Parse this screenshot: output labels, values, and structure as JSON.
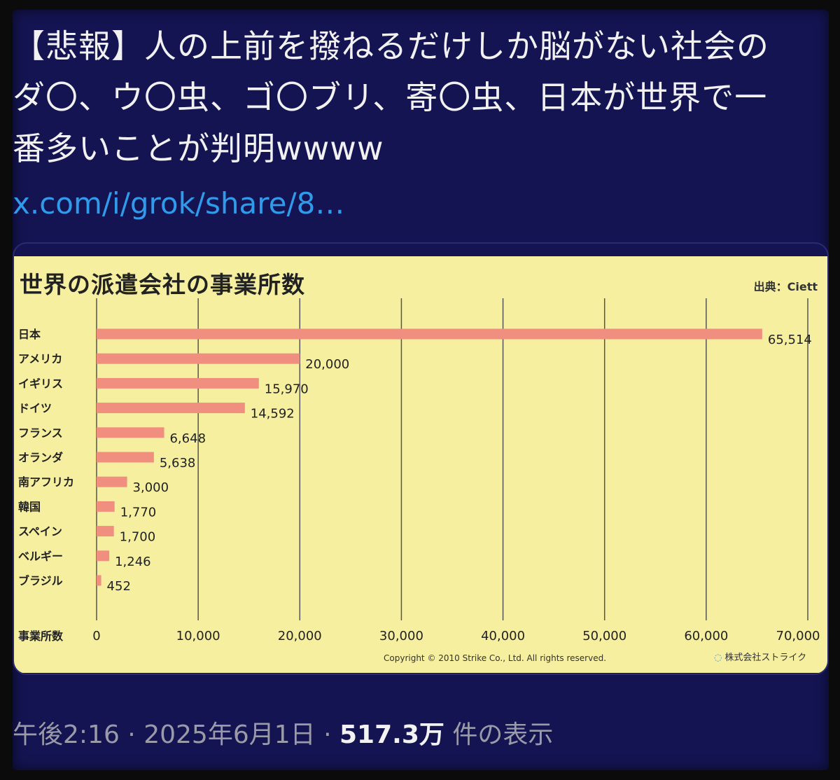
{
  "tweet": {
    "text_lines": [
      "【悲報】人の上前を撥ねるだけしか脳がない社会の",
      "ダ〇、ウ〇虫、ゴ〇ブリ、寄〇虫、日本が世界で一",
      "番多いことが判明wwww"
    ],
    "link": "x.com/i/grok/share/8…",
    "time": "午後2:16",
    "separator": "·",
    "date": "2025年6月1日",
    "views_count": "517.3万",
    "views_label": "件の表示"
  },
  "media": {
    "copyright": "Copyright © 2010 Strike Co., Ltd. All rights reserved.",
    "logo_text": "株式会社ストライク"
  },
  "chart_data": {
    "type": "bar",
    "orientation": "horizontal",
    "title": "世界の派遣会社の事業所数",
    "source": "出典：Ciett",
    "xlabel": "事業所数",
    "categories": [
      "日本",
      "アメリカ",
      "イギリス",
      "ドイツ",
      "フランス",
      "オランダ",
      "南アフリカ",
      "韓国",
      "スペイン",
      "ベルギー",
      "ブラジル"
    ],
    "values": [
      65514,
      20000,
      15970,
      14592,
      6648,
      5638,
      3000,
      1770,
      1700,
      1246,
      452
    ],
    "value_labels": [
      "65,514",
      "20,000",
      "15,970",
      "14,592",
      "6,648",
      "5,638",
      "3,000",
      "1,770",
      "1,700",
      "1,246",
      "452"
    ],
    "xlim": [
      0,
      70000
    ],
    "xticks": [
      0,
      10000,
      20000,
      30000,
      40000,
      50000,
      60000,
      70000
    ],
    "xtick_labels": [
      "0",
      "10,000",
      "20,000",
      "30,000",
      "40,000",
      "50,000",
      "60,000",
      "70,000"
    ],
    "grid": true,
    "colors": {
      "bar": "#f08f7f",
      "background": "#f5ef9f",
      "grid": "#555555"
    }
  },
  "colors": {
    "page_background": "#141452",
    "text": "#f1f1f1",
    "link": "#2f9bea",
    "meta": "#9a9aa8"
  }
}
